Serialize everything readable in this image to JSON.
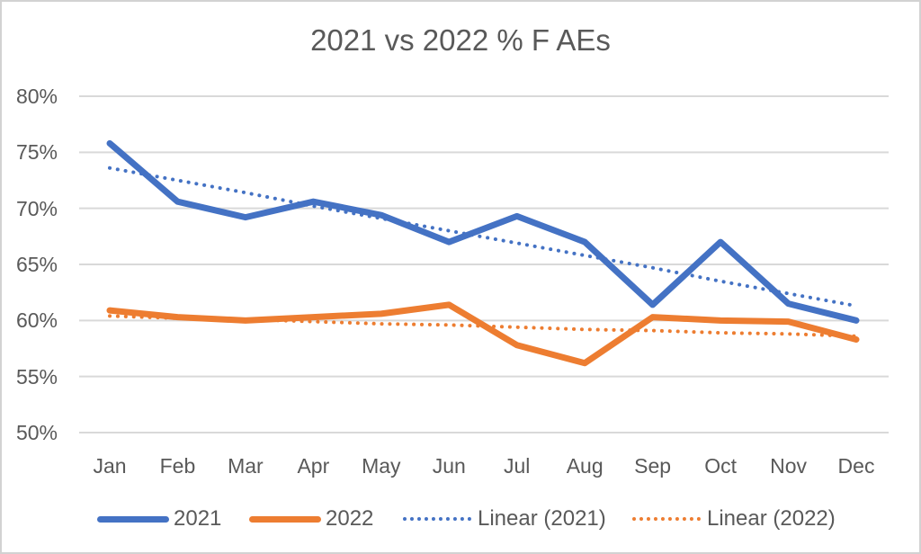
{
  "title": "2021 vs 2022 % F AEs",
  "colors": {
    "series_2021": "#4472C4",
    "series_2022": "#ED7D31",
    "gridline": "#D9D9D9",
    "axis_text": "#595959",
    "frame_border": "#D2D2D2",
    "background": "#FFFFFF"
  },
  "chart_data": {
    "type": "line",
    "title": "2021 vs 2022 % F AEs",
    "categories": [
      "Jan",
      "Feb",
      "Mar",
      "Apr",
      "May",
      "Jun",
      "Jul",
      "Aug",
      "Sep",
      "Oct",
      "Nov",
      "Dec"
    ],
    "series": [
      {
        "name": "2021",
        "style": "solid",
        "color": "#4472C4",
        "values": [
          75.8,
          70.6,
          69.2,
          70.6,
          69.4,
          67.0,
          69.3,
          67.0,
          61.4,
          67.0,
          61.5,
          60.0
        ]
      },
      {
        "name": "2022",
        "style": "solid",
        "color": "#ED7D31",
        "values": [
          60.9,
          60.3,
          60.0,
          60.3,
          60.6,
          61.4,
          57.8,
          56.2,
          60.3,
          60.0,
          59.9,
          58.3
        ]
      },
      {
        "name": "Linear (2021)",
        "style": "dotted",
        "trend": true,
        "color": "#4472C4",
        "values": [
          73.6,
          72.5,
          71.4,
          70.2,
          69.1,
          68.0,
          66.9,
          65.8,
          64.7,
          63.5,
          62.4,
          61.3
        ]
      },
      {
        "name": "Linear (2022)",
        "style": "dotted",
        "trend": true,
        "color": "#ED7D31",
        "values": [
          60.4,
          60.2,
          60.1,
          59.9,
          59.7,
          59.6,
          59.4,
          59.2,
          59.1,
          58.9,
          58.8,
          58.6
        ]
      }
    ],
    "ylim": [
      50,
      80
    ],
    "ytick_step": 5,
    "ytick_labels": [
      "50%",
      "55%",
      "60%",
      "65%",
      "70%",
      "75%",
      "80%"
    ],
    "grid": true,
    "legend_position": "bottom",
    "legend_entries": [
      "2021",
      "2022",
      "Linear (2021)",
      "Linear (2022)"
    ]
  }
}
